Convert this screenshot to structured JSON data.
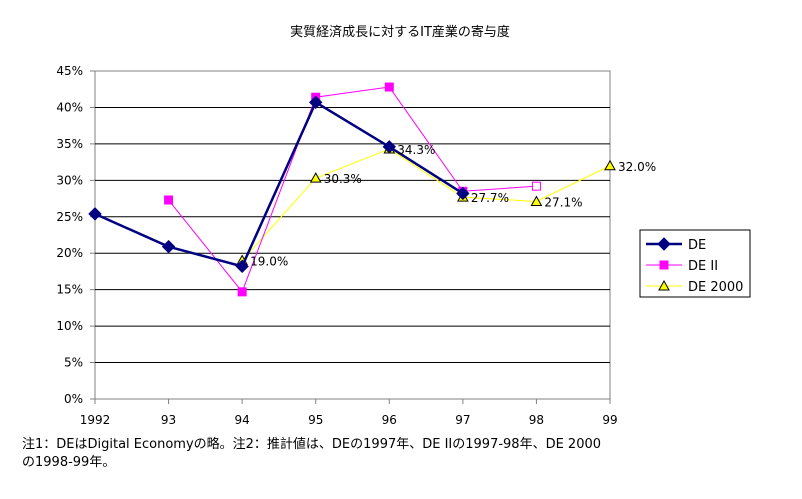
{
  "chart_data": {
    "type": "line",
    "title": "実質経済成長に対するIT産業の寄与度",
    "x": [
      "1992",
      "93",
      "94",
      "95",
      "96",
      "97",
      "98",
      "99"
    ],
    "y_ticks": [
      "0%",
      "5%",
      "10%",
      "15%",
      "20%",
      "25%",
      "30%",
      "35%",
      "40%",
      "45%"
    ],
    "ylim": [
      0,
      45
    ],
    "y_unit": "%",
    "grid": true,
    "legend_position": "right",
    "series": [
      {
        "name": "DE",
        "color": "#000080",
        "marker": "diamond",
        "values": [
          25.4,
          20.9,
          18.2,
          40.7,
          34.6,
          28.2,
          null,
          null
        ]
      },
      {
        "name": "DE II",
        "color": "#ff00ff",
        "marker": "square",
        "values": [
          null,
          27.3,
          14.7,
          41.4,
          42.8,
          28.5,
          29.2,
          null
        ],
        "hollow_from_index": 6
      },
      {
        "name": "DE 2000",
        "color": "#ffff00",
        "marker": "triangle",
        "values": [
          null,
          null,
          19.0,
          30.3,
          34.3,
          27.7,
          27.1,
          32.0
        ],
        "labels": [
          null,
          null,
          "19.0%",
          "30.3%",
          "34.3%",
          "27.7%",
          "27.1%",
          "32.0%"
        ]
      }
    ]
  },
  "note": "注1：DEはDigital Economyの略。注2：推計値は、DEの1997年、DE IIの1997-98年、DE 2000\nの1998-99年。"
}
